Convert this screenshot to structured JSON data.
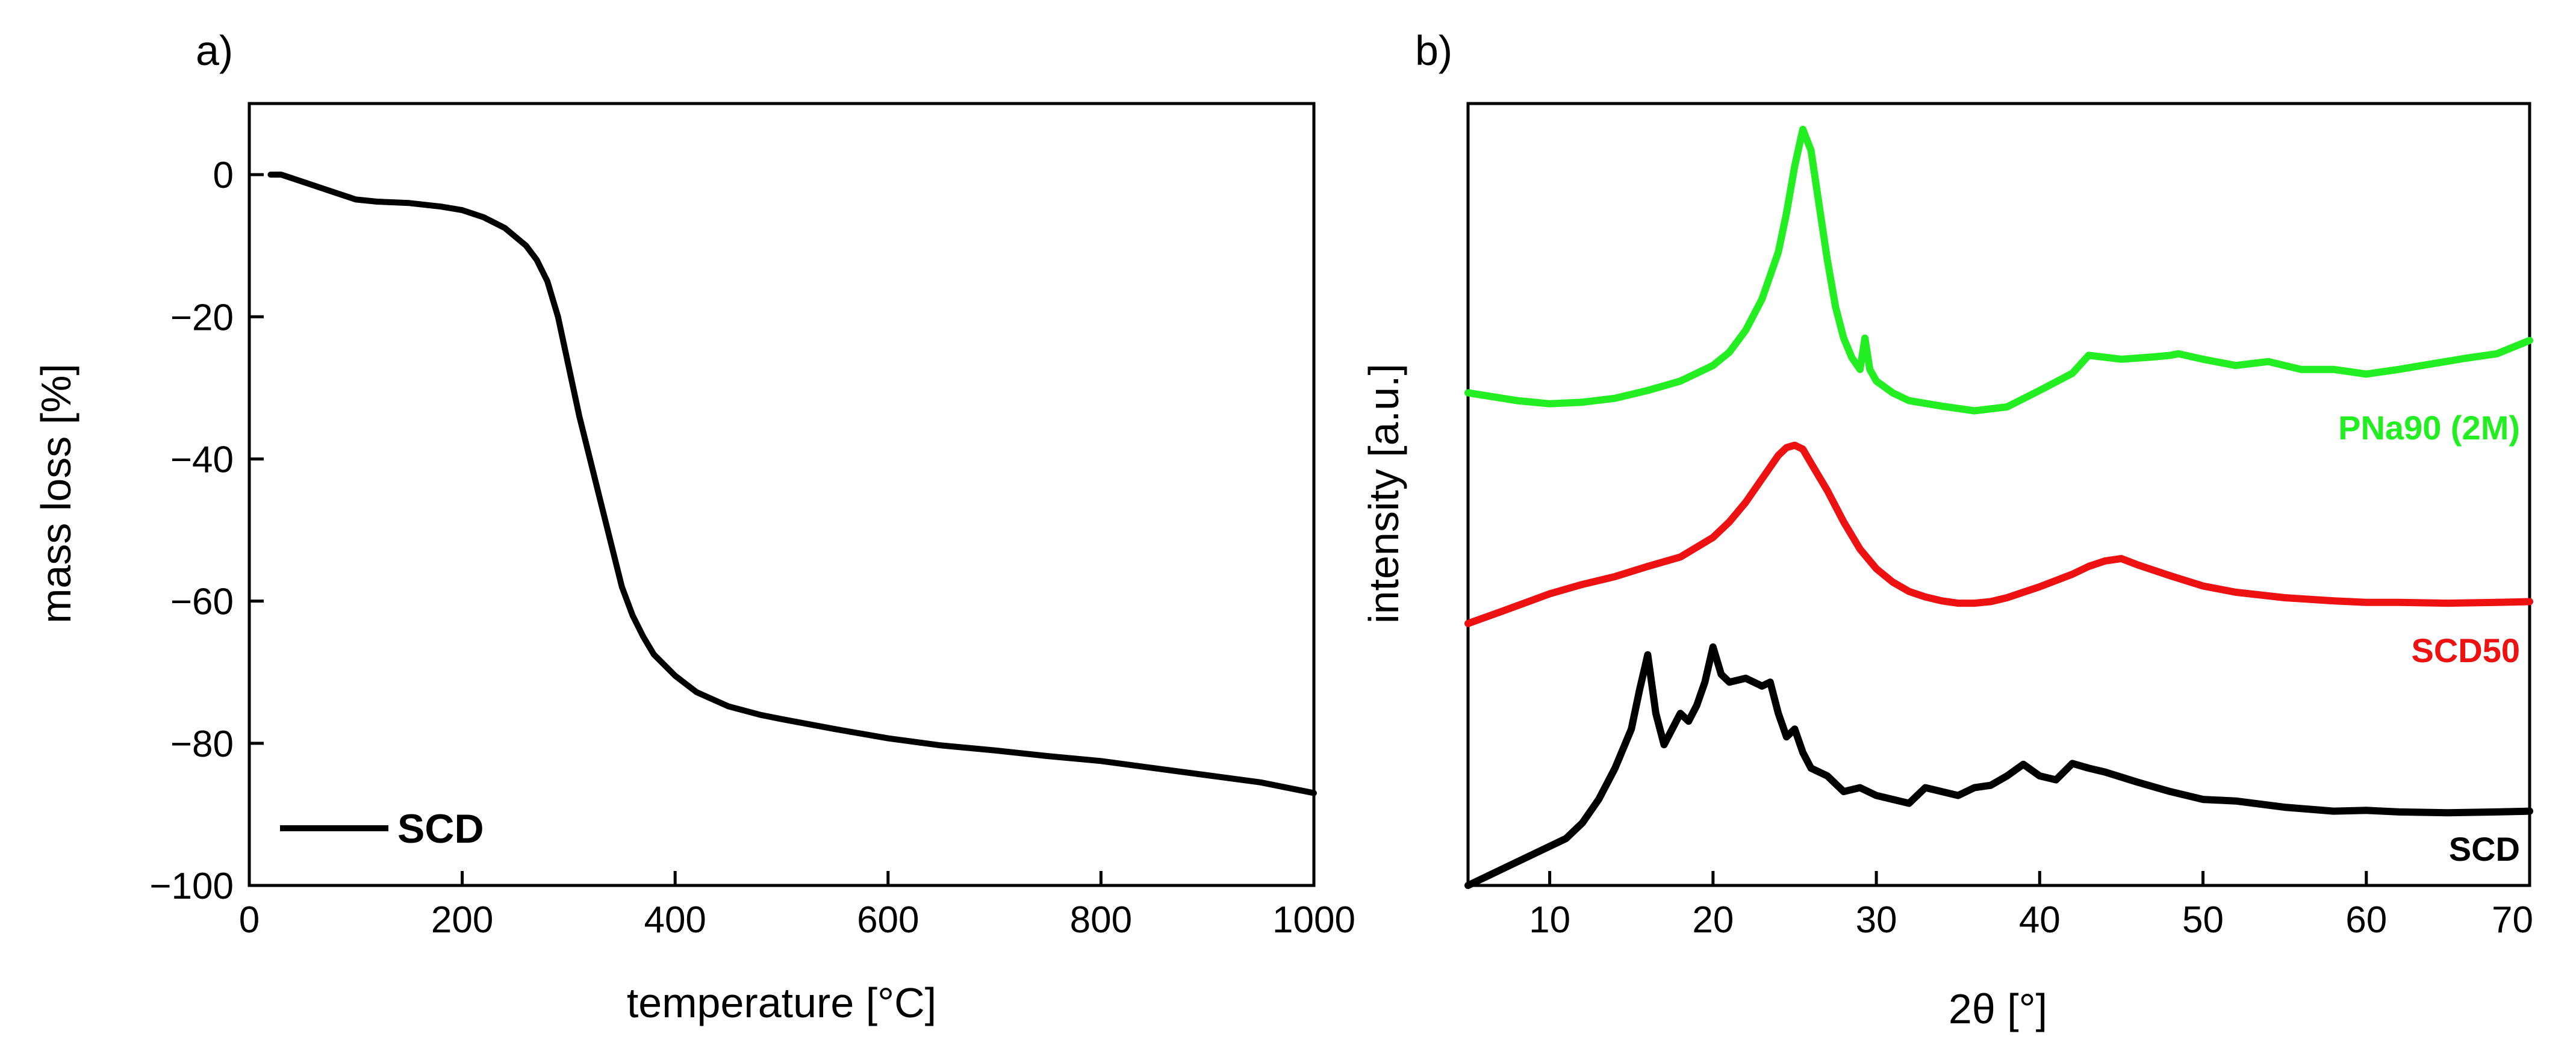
{
  "chart_data": [
    {
      "type": "line",
      "panel_label": "a)",
      "title": "",
      "xlabel": "temperature [°C]",
      "ylabel": "mass loss [%]",
      "xlim": [
        0,
        1000
      ],
      "ylim": [
        -100,
        10
      ],
      "xticks": [
        0,
        200,
        400,
        600,
        800,
        1000
      ],
      "yticks": [
        0,
        -20,
        -40,
        -60,
        -80,
        -100
      ],
      "xtick_labels": [
        "0",
        "200",
        "400",
        "600",
        "800",
        "1000"
      ],
      "ytick_labels": [
        "0",
        "−20",
        "−40",
        "−60",
        "−80",
        "−100"
      ],
      "legend": {
        "position": "bottom-left",
        "entries": [
          "SCD"
        ]
      },
      "series": [
        {
          "name": "SCD",
          "color": "#000000",
          "x": [
            20,
            30,
            50,
            80,
            100,
            120,
            150,
            180,
            200,
            220,
            240,
            260,
            270,
            280,
            290,
            300,
            310,
            320,
            330,
            340,
            350,
            360,
            370,
            380,
            400,
            420,
            450,
            480,
            500,
            550,
            600,
            650,
            700,
            750,
            800,
            850,
            900,
            950,
            1000
          ],
          "y": [
            0,
            0,
            -1,
            -2.5,
            -3.5,
            -3.8,
            -4,
            -4.5,
            -5,
            -6,
            -7.5,
            -10,
            -12,
            -15,
            -20,
            -27,
            -34,
            -40,
            -46,
            -52,
            -58,
            -62,
            -65,
            -67.5,
            -70.5,
            -72.8,
            -74.8,
            -76,
            -76.6,
            -78,
            -79.3,
            -80.3,
            -81,
            -81.8,
            -82.5,
            -83.5,
            -84.5,
            -85.5,
            -87
          ]
        }
      ]
    },
    {
      "type": "line",
      "panel_label": "b)",
      "title": "",
      "xlabel": "2θ [°]",
      "ylabel": "intensity [a.u.]",
      "xlim": [
        5,
        70
      ],
      "ylim": [
        0,
        100
      ],
      "xticks": [
        10,
        20,
        30,
        40,
        50,
        60,
        70
      ],
      "xtick_labels": [
        "10",
        "20",
        "30",
        "40",
        "50",
        "60",
        "70"
      ],
      "yticks_shown": false,
      "series": [
        {
          "name": "PNa90 (2M)",
          "color": "#22ee22",
          "x": [
            5,
            8,
            10,
            12,
            14,
            16,
            18,
            20,
            21,
            22,
            23,
            24,
            24.5,
            25,
            25.5,
            26,
            26.5,
            27,
            27.5,
            28,
            28.5,
            29,
            29.3,
            29.6,
            30,
            31,
            32,
            34,
            36,
            38,
            40,
            42,
            43,
            45,
            47,
            48,
            48.5,
            50,
            52,
            54,
            56,
            58,
            60,
            62,
            64,
            66,
            68,
            70
          ],
          "y": [
            63,
            62,
            61.6,
            61.8,
            62.3,
            63.3,
            64.5,
            66.5,
            68.2,
            71,
            75,
            81,
            86,
            92,
            96.7,
            94,
            87,
            80,
            74,
            70,
            67.5,
            66,
            70,
            66,
            64.5,
            63,
            62,
            61.3,
            60.7,
            61.2,
            63.3,
            65.5,
            67.8,
            67.3,
            67.6,
            67.8,
            68,
            67.3,
            66.5,
            67,
            66,
            66,
            65.4,
            66,
            66.7,
            67.4,
            68,
            69.7
          ]
        },
        {
          "name": "SCD50",
          "color": "#ee1111",
          "x": [
            5,
            7,
            10,
            12,
            14,
            16,
            18,
            20,
            21,
            22,
            23,
            24,
            24.5,
            25,
            25.5,
            26,
            27,
            28,
            29,
            30,
            31,
            32,
            33,
            34,
            35,
            36,
            37,
            38,
            40,
            42,
            43,
            44,
            45,
            46,
            48,
            50,
            52,
            55,
            58,
            60,
            62,
            65,
            68,
            70
          ],
          "y": [
            33.5,
            35,
            37.3,
            38.5,
            39.5,
            40.8,
            42,
            44.5,
            46.5,
            49,
            52,
            55,
            56,
            56.3,
            55.8,
            54,
            50.5,
            46.5,
            43,
            40.5,
            38.8,
            37.6,
            36.9,
            36.4,
            36.1,
            36.1,
            36.3,
            36.8,
            38.2,
            39.8,
            40.8,
            41.5,
            41.8,
            41,
            39.6,
            38.3,
            37.5,
            36.8,
            36.4,
            36.2,
            36.2,
            36.1,
            36.2,
            36.3
          ]
        },
        {
          "name": "SCD",
          "color": "#000000",
          "x": [
            5,
            7,
            9,
            11,
            12,
            13,
            14,
            15,
            15.5,
            16,
            16.5,
            17,
            18,
            18.5,
            19,
            19.5,
            20,
            20.5,
            21,
            22,
            23,
            23.5,
            24,
            24.5,
            25,
            25.5,
            26,
            27,
            28,
            29,
            30,
            31,
            32,
            33,
            34,
            35,
            36,
            37,
            38,
            39,
            40,
            41,
            42,
            43,
            44,
            46,
            48,
            50,
            52,
            55,
            58,
            60,
            62,
            65,
            68,
            70
          ],
          "y": [
            0,
            2,
            4,
            6,
            8,
            11,
            15,
            20,
            25,
            29.5,
            22,
            18,
            22,
            21,
            23,
            26,
            30.5,
            27,
            26,
            26.5,
            25.5,
            26,
            22,
            19,
            20,
            17,
            15,
            14,
            12,
            12.5,
            11.5,
            11,
            10.5,
            12.5,
            12,
            11.5,
            12.5,
            12.8,
            14,
            15.5,
            14,
            13.5,
            15.6,
            15,
            14.5,
            13.2,
            12,
            11,
            10.8,
            10,
            9.5,
            9.6,
            9.4,
            9.3,
            9.4,
            9.5
          ]
        }
      ]
    }
  ]
}
